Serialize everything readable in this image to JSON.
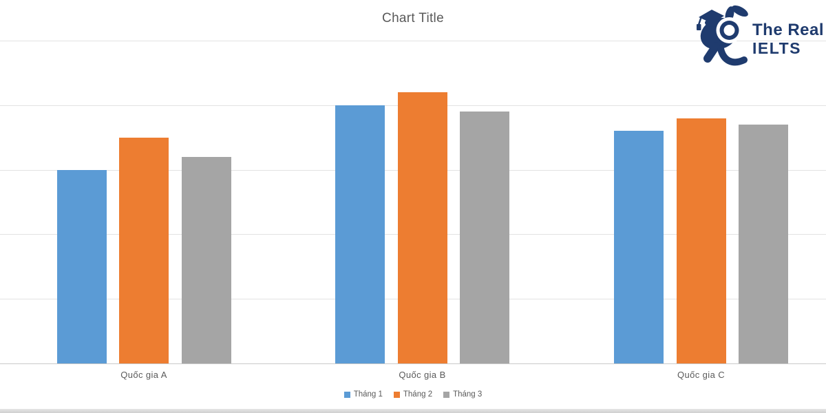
{
  "logo": {
    "line1": "The Real",
    "line2": "IELTS",
    "color": "#1f3b6e",
    "mascot": "rabbit-graduation-cap-mascot-icon"
  },
  "chart_data": {
    "type": "bar",
    "title": "Chart Title",
    "categories": [
      "Quốc gia A",
      "Quốc gia B",
      "Quốc gia C"
    ],
    "series": [
      {
        "name": "Tháng 1",
        "color": "#5B9BD5",
        "values": [
          30,
          40,
          36
        ]
      },
      {
        "name": "Tháng 2",
        "color": "#ED7D31",
        "values": [
          35,
          42,
          38
        ]
      },
      {
        "name": "Tháng 3",
        "color": "#A5A5A5",
        "values": [
          32,
          39,
          37
        ]
      }
    ],
    "xlabel": "",
    "ylabel": "",
    "ylim": [
      0,
      50
    ],
    "gridline_step": 10,
    "grid": true,
    "y_axis_labels_visible": false,
    "legend_position": "bottom",
    "text_color": "#595959"
  }
}
